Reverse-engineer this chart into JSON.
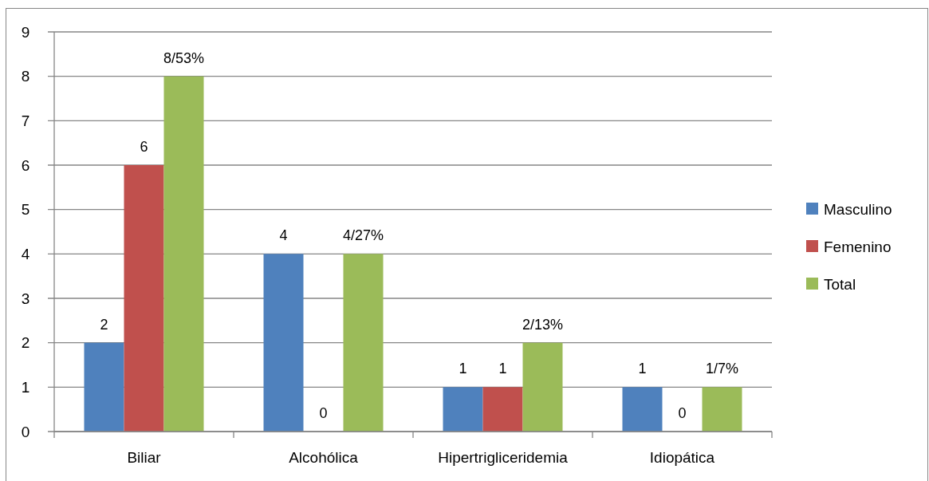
{
  "chart_data": {
    "type": "bar",
    "categories": [
      "Biliar",
      "Alcohólica",
      "Hipertrigliceridemia",
      "Idiopática"
    ],
    "series": [
      {
        "name": "Masculino",
        "color": "#4f81bd",
        "values": [
          2,
          4,
          1,
          1
        ],
        "value_labels": [
          "2",
          "4",
          "1",
          "1"
        ]
      },
      {
        "name": "Femenino",
        "color": "#c0504d",
        "values": [
          6,
          0,
          1,
          0
        ],
        "value_labels": [
          "6",
          "0",
          "1",
          "0"
        ]
      },
      {
        "name": "Total",
        "color": "#9bbb59",
        "values": [
          8,
          4,
          2,
          1
        ],
        "value_labels": [
          "8/53%",
          "4/27%",
          "2/13%",
          "1/7%"
        ]
      }
    ],
    "ylim": [
      0,
      9
    ],
    "yticks": [
      0,
      1,
      2,
      3,
      4,
      5,
      6,
      7,
      8,
      9
    ],
    "grid": "y",
    "legend": "right"
  }
}
